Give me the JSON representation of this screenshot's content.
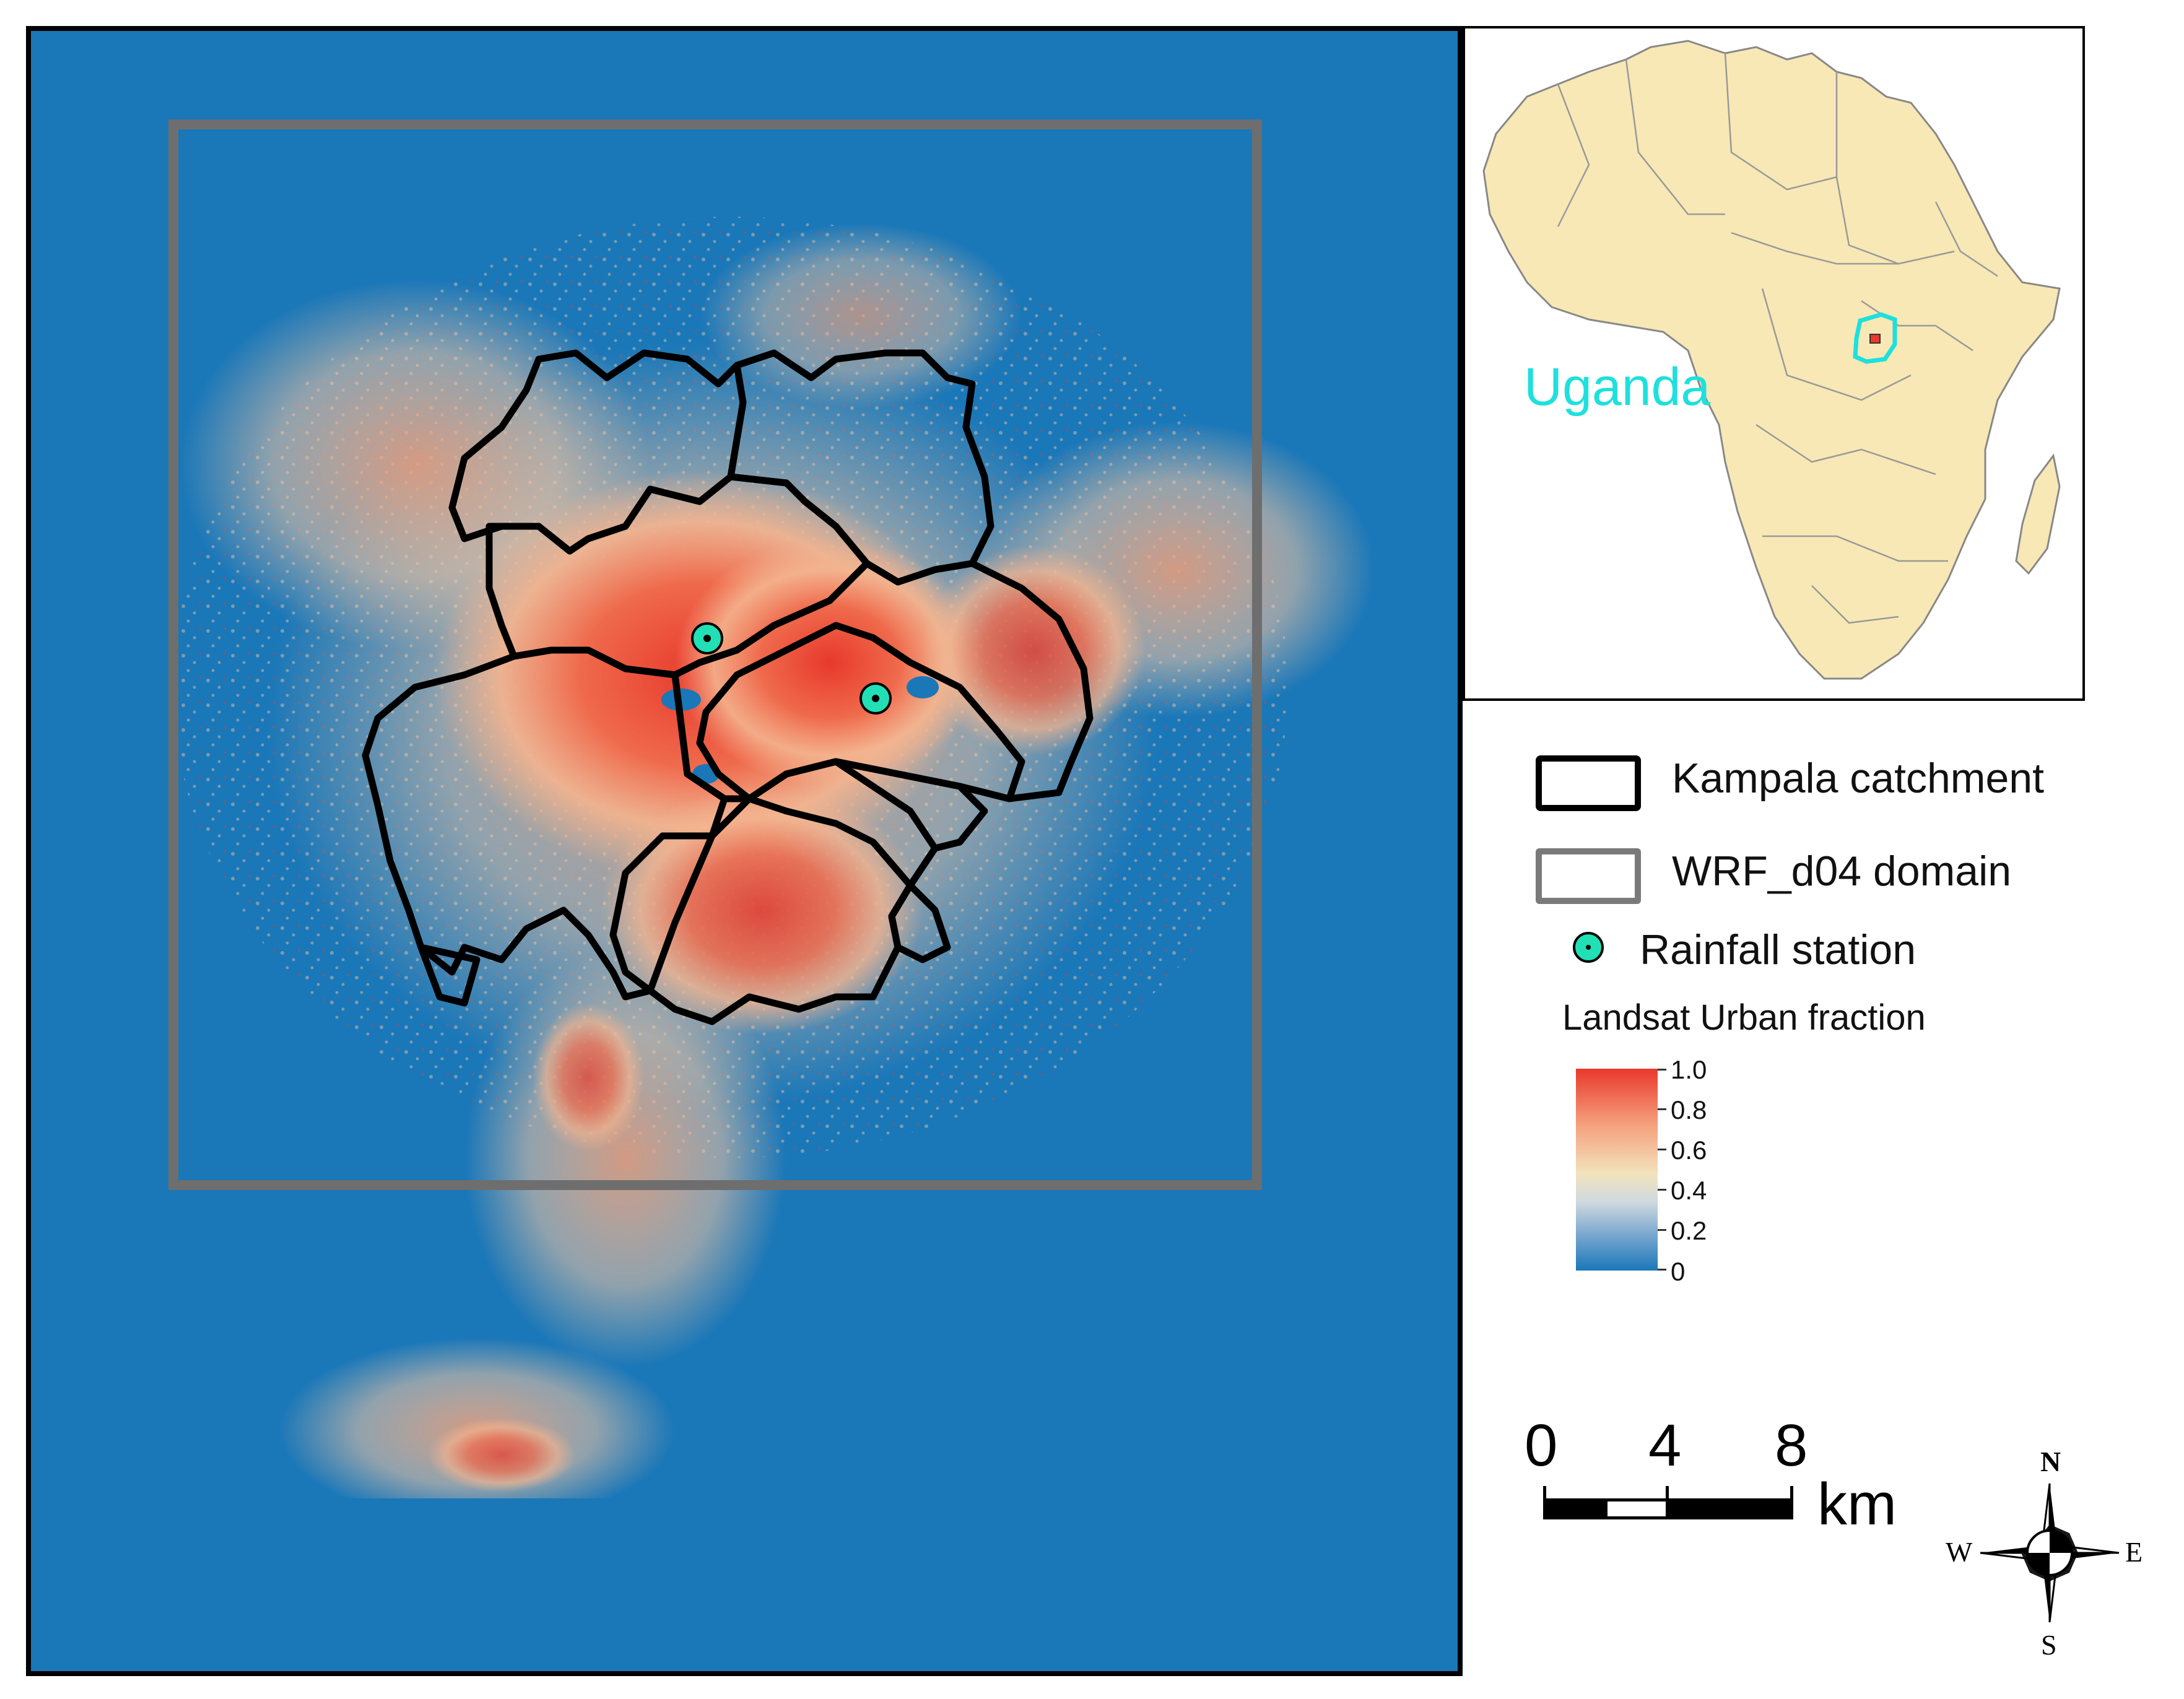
{
  "main_map": {
    "background_color": "#1a77b8",
    "urban_color_high": "#e8392c",
    "urban_color_mid": "#f4b48f",
    "catchment_color": "#000000",
    "domain_color": "#6e6e6e",
    "station_color": "#22e0b5"
  },
  "inset": {
    "country_label": "Uganda",
    "label_color": "#1ee0dd",
    "land_color": "#f7e8b5"
  },
  "legend": {
    "catchment_label": "Kampala catchment",
    "domain_label": "WRF_d04 domain",
    "station_label": "Rainfall station",
    "colorbar_title": "Landsat Urban fraction",
    "colorbar_ticks": [
      "1.0",
      "0.8",
      "0.6",
      "0.4",
      "0.2",
      "0"
    ],
    "colorbar_colors": [
      "#e8392c",
      "#f5a17d",
      "#f2e3bd",
      "#cfd9df",
      "#7ba8cf",
      "#1a77b8"
    ]
  },
  "scale_bar": {
    "ticks": [
      "0",
      "4",
      "8"
    ],
    "unit": "km"
  },
  "compass": {
    "north": "N",
    "south": "S",
    "east": "E",
    "west": "W"
  }
}
